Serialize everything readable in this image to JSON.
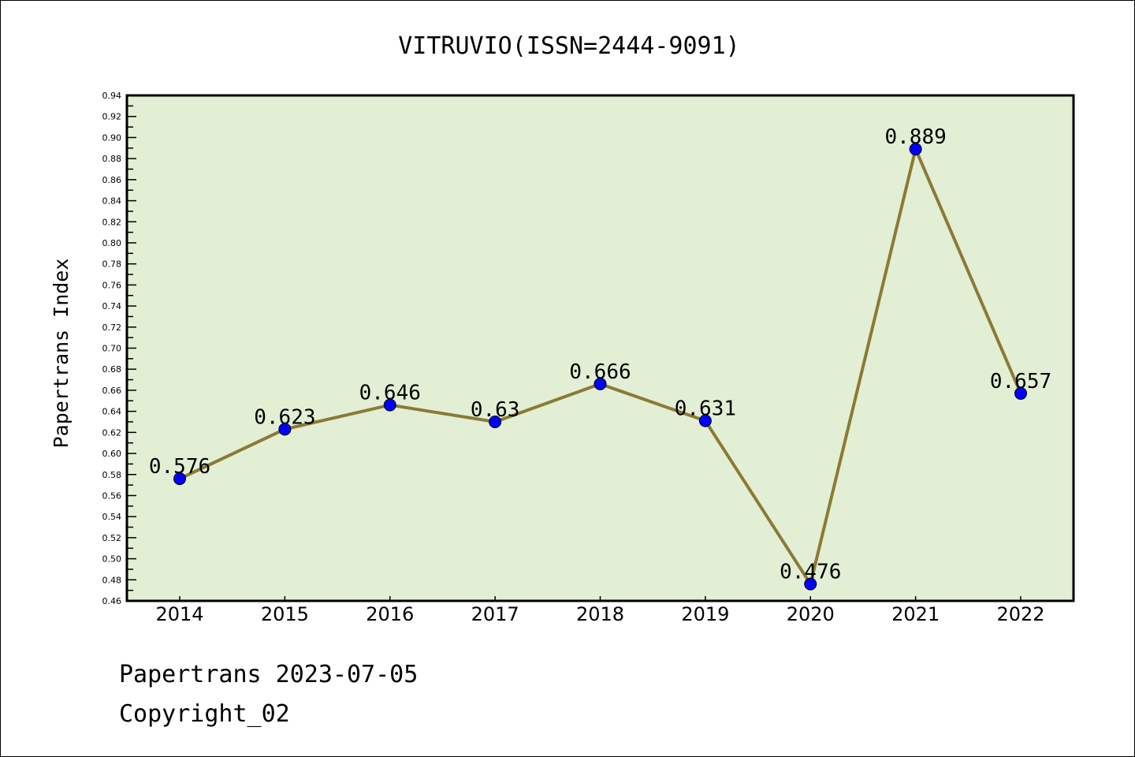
{
  "chart_data": {
    "type": "line",
    "title": "VITRUVIO(ISSN=2444-9091)",
    "xlabel": "",
    "ylabel": "Papertrans Index",
    "categories": [
      "2014",
      "2015",
      "2016",
      "2017",
      "2018",
      "2019",
      "2020",
      "2021",
      "2022"
    ],
    "series": [
      {
        "name": "Papertrans Index",
        "values": [
          0.576,
          0.623,
          0.646,
          0.63,
          0.666,
          0.631,
          0.476,
          0.889,
          0.657
        ]
      }
    ],
    "data_labels": [
      "0.576",
      "0.623",
      "0.646",
      "0.63",
      "0.666",
      "0.631",
      "0.476",
      "0.889",
      "0.657"
    ],
    "ylim": [
      0.46,
      0.94
    ],
    "yticks": [
      "0.46",
      "0.48",
      "0.50",
      "0.52",
      "0.54",
      "0.56",
      "0.58",
      "0.60",
      "0.62",
      "0.64",
      "0.66",
      "0.68",
      "0.70",
      "0.72",
      "0.74",
      "0.76",
      "0.78",
      "0.80",
      "0.82",
      "0.84",
      "0.86",
      "0.88",
      "0.90",
      "0.92",
      "0.94"
    ],
    "grid": false,
    "colors": {
      "line": "#8b7a35",
      "marker": "#0000ff",
      "plot_bg": "#e2efd5"
    }
  },
  "footer": {
    "line1": "Papertrans 2023-07-05",
    "line2": "Copyright_02"
  }
}
